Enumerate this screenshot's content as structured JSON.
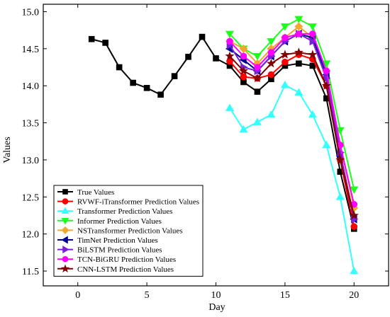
{
  "chart_data": {
    "type": "line",
    "title": "",
    "xlabel": "Day",
    "ylabel": "Values",
    "xlim": [
      -2.5,
      22.5
    ],
    "ylim": [
      11.3,
      15.1
    ],
    "xticks": [
      0,
      5,
      10,
      15,
      20
    ],
    "xtick_labels": [
      "0",
      "5",
      "10",
      "15",
      "20"
    ],
    "yticks": [
      11.5,
      12.0,
      12.5,
      13.0,
      13.5,
      14.0,
      14.5,
      15.0
    ],
    "ytick_labels": [
      "11.5",
      "12.0",
      "12.5",
      "13.0",
      "13.5",
      "14.0",
      "14.5",
      "15.0"
    ],
    "grid": false,
    "legend_position": "lower-left",
    "series": [
      {
        "name": "True Values",
        "color": "#000000",
        "marker": "square",
        "x": [
          1,
          2,
          3,
          4,
          5,
          6,
          7,
          8,
          9,
          10,
          11,
          12,
          13,
          14,
          15,
          16,
          17,
          18,
          19,
          20
        ],
        "y": [
          14.63,
          14.58,
          14.25,
          14.04,
          13.97,
          13.88,
          14.13,
          14.39,
          14.66,
          14.37,
          14.27,
          14.05,
          13.92,
          14.09,
          14.27,
          14.3,
          14.27,
          13.83,
          12.84,
          12.07
        ]
      },
      {
        "name": "RVWF-iTransformer Prediction Values",
        "color": "#ff0000",
        "marker": "circle",
        "x": [
          11,
          12,
          13,
          14,
          15,
          16,
          17,
          18,
          19,
          20
        ],
        "y": [
          14.33,
          14.12,
          14.1,
          14.15,
          14.32,
          14.42,
          14.36,
          14.0,
          13.0,
          12.1
        ]
      },
      {
        "name": "Transformer Prediction Values",
        "color": "#33ffff",
        "marker": "triangle-up",
        "x": [
          11,
          12,
          13,
          14,
          15,
          16,
          17,
          18,
          19,
          20
        ],
        "y": [
          13.7,
          13.41,
          13.51,
          13.61,
          14.01,
          13.91,
          13.61,
          13.2,
          12.5,
          11.5
        ]
      },
      {
        "name": "Informer  Prediction Values",
        "color": "#1eff1e",
        "marker": "triangle-down",
        "x": [
          11,
          12,
          13,
          14,
          15,
          16,
          17,
          18,
          19,
          20
        ],
        "y": [
          14.7,
          14.5,
          14.4,
          14.6,
          14.8,
          14.9,
          14.8,
          14.3,
          13.4,
          12.6
        ]
      },
      {
        "name": "NSTransformer Prediction Values",
        "color": "#f0a830",
        "marker": "diamond",
        "x": [
          11,
          12,
          13,
          14,
          15,
          16,
          17,
          18,
          19,
          20
        ],
        "y": [
          14.6,
          14.5,
          14.3,
          14.5,
          14.65,
          14.8,
          14.65,
          14.2,
          13.2,
          12.35
        ]
      },
      {
        "name": "TimNet Prediction Values",
        "color": "#000090",
        "marker": "triangle-left",
        "x": [
          11,
          12,
          13,
          14,
          15,
          16,
          17,
          18,
          19,
          20
        ],
        "y": [
          14.5,
          14.35,
          14.2,
          14.4,
          14.6,
          14.7,
          14.65,
          14.15,
          13.05,
          12.2
        ]
      },
      {
        "name": "BiLSTM Prediction Values",
        "color": "#7a20d8",
        "marker": "triangle-right",
        "x": [
          11,
          12,
          13,
          14,
          15,
          16,
          17,
          18,
          19,
          20
        ],
        "y": [
          14.55,
          14.25,
          14.2,
          14.4,
          14.6,
          14.7,
          14.6,
          14.1,
          13.1,
          12.2
        ]
      },
      {
        "name": "TCN-BiGRU  Prediction Values",
        "color": "#ff00ff",
        "marker": "circle",
        "x": [
          11,
          12,
          13,
          14,
          15,
          16,
          17,
          18,
          19,
          20
        ],
        "y": [
          14.6,
          14.4,
          14.25,
          14.45,
          14.65,
          14.7,
          14.7,
          14.2,
          13.2,
          12.4
        ]
      },
      {
        "name": "CNN-LSTM Prediction Values",
        "color": "#800000",
        "marker": "star",
        "x": [
          11,
          12,
          13,
          14,
          15,
          16,
          17,
          18,
          19,
          20
        ],
        "y": [
          14.4,
          14.2,
          14.1,
          14.3,
          14.42,
          14.45,
          14.42,
          14.0,
          13.0,
          12.25
        ]
      }
    ]
  }
}
